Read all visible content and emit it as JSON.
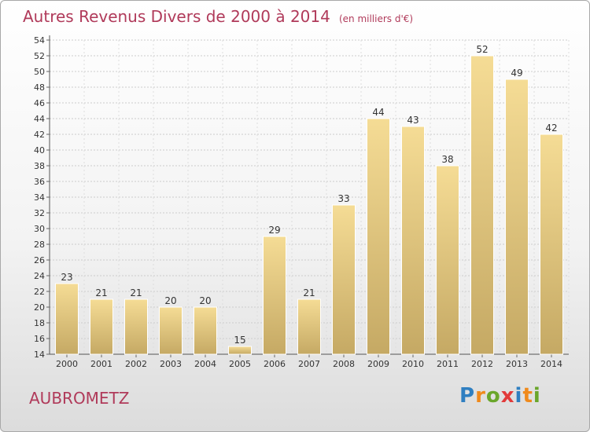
{
  "title": "Autres Revenus Divers de 2000 à 2014",
  "unit_note": "(en milliers d'€)",
  "commune": "AUBROMETZ",
  "logo": {
    "text": "Proxiti",
    "letters": [
      {
        "ch": "P",
        "color": "#2f7fc1"
      },
      {
        "ch": "r",
        "color": "#f08a1c"
      },
      {
        "ch": "o",
        "color": "#6aa62b"
      },
      {
        "ch": "x",
        "color": "#e23a3a"
      },
      {
        "ch": "i",
        "color": "#2f7fc1"
      },
      {
        "ch": "t",
        "color": "#f08a1c"
      },
      {
        "ch": "i",
        "color": "#6aa62b"
      }
    ]
  },
  "colors": {
    "title": "#b03a5a",
    "bar_light": "#f5dc95",
    "bar_dark": "#c5a964",
    "grid": "#cccccc"
  },
  "chart_data": {
    "type": "bar",
    "title": "Autres Revenus Divers de 2000 à 2014",
    "subtitle": "(en milliers d'€)",
    "xlabel": "",
    "ylabel": "",
    "categories": [
      "2000",
      "2001",
      "2002",
      "2003",
      "2004",
      "2005",
      "2006",
      "2007",
      "2008",
      "2009",
      "2010",
      "2011",
      "2012",
      "2013",
      "2014"
    ],
    "values": [
      23,
      21,
      21,
      20,
      20,
      15,
      29,
      21,
      33,
      44,
      43,
      38,
      52,
      49,
      42
    ],
    "ylim": [
      14,
      54
    ],
    "yticks": [
      14,
      16,
      18,
      20,
      22,
      24,
      26,
      28,
      30,
      32,
      34,
      36,
      38,
      40,
      42,
      44,
      46,
      48,
      50,
      52,
      54
    ],
    "grid": true,
    "legend": "none"
  }
}
